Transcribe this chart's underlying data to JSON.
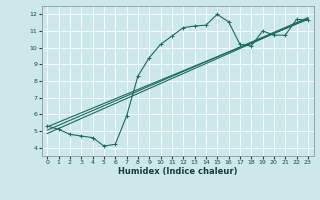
{
  "xlabel": "Humidex (Indice chaleur)",
  "bg_color": "#cce8e8",
  "grid_color": "#ffffff",
  "line_color": "#1a6b5a",
  "xlim": [
    -0.5,
    23.5
  ],
  "ylim": [
    3.5,
    12.5
  ],
  "xticks": [
    0,
    1,
    2,
    3,
    4,
    5,
    6,
    7,
    8,
    9,
    10,
    11,
    12,
    13,
    14,
    15,
    16,
    17,
    18,
    19,
    20,
    21,
    22,
    23
  ],
  "yticks": [
    4,
    5,
    6,
    7,
    8,
    9,
    10,
    11,
    12
  ],
  "data_x": [
    0,
    1,
    2,
    3,
    4,
    5,
    6,
    7,
    8,
    9,
    10,
    11,
    12,
    13,
    14,
    15,
    16,
    17,
    18,
    19,
    20,
    21,
    22,
    23
  ],
  "data_y": [
    5.3,
    5.1,
    4.8,
    4.7,
    4.6,
    4.1,
    4.2,
    5.9,
    8.3,
    9.4,
    10.2,
    10.7,
    11.2,
    11.3,
    11.35,
    12.0,
    11.55,
    10.2,
    10.1,
    11.0,
    10.75,
    10.75,
    11.7,
    11.65
  ],
  "reg_lines": [
    {
      "x": [
        0,
        23
      ],
      "y": [
        5.05,
        11.8
      ]
    },
    {
      "x": [
        0,
        23
      ],
      "y": [
        5.25,
        11.7
      ]
    },
    {
      "x": [
        0,
        23
      ],
      "y": [
        4.85,
        11.75
      ]
    }
  ]
}
